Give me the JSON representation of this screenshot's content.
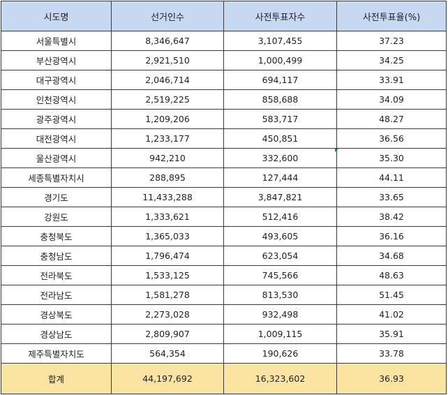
{
  "columns": [
    "시도명",
    "선거인수",
    "사전투표자수",
    "사전투표율(%)"
  ],
  "rows": [
    [
      "서울특별시",
      "8,346,647",
      "3,107,455",
      "37.23"
    ],
    [
      "부산광역시",
      "2,921,510",
      "1,000,499",
      "34.25"
    ],
    [
      "대구광역시",
      "2,046,714",
      "694,117",
      "33.91"
    ],
    [
      "인천광역시",
      "2,519,225",
      "858,688",
      "34.09"
    ],
    [
      "광주광역시",
      "1,209,206",
      "583,717",
      "48.27"
    ],
    [
      "대전광역시",
      "1,233,177",
      "450,851",
      "36.56"
    ],
    [
      "울산광역시",
      "942,210",
      "332,600",
      "35.30"
    ],
    [
      "세종특별자치시",
      "288,895",
      "127,444",
      "44.11"
    ],
    [
      "경기도",
      "11,433,288",
      "3,847,821",
      "33.65"
    ],
    [
      "강원도",
      "1,333,621",
      "512,416",
      "38.42"
    ],
    [
      "충청북도",
      "1,365,033",
      "493,605",
      "36.16"
    ],
    [
      "충청남도",
      "1,796,474",
      "623,054",
      "34.68"
    ],
    [
      "전라북도",
      "1,533,125",
      "745,566",
      "48.63"
    ],
    [
      "전라남도",
      "1,581,278",
      "813,530",
      "51.45"
    ],
    [
      "경상북도",
      "2,273,028",
      "932,498",
      "41.02"
    ],
    [
      "경상남도",
      "2,809,907",
      "1,009,115",
      "35.91"
    ],
    [
      "제주특별자치도",
      "564,354",
      "190,626",
      "33.78"
    ]
  ],
  "total": [
    "합계",
    "44,197,692",
    "16,323,602",
    "36.93"
  ],
  "colors": {
    "header_bg": "#c6d9f1",
    "total_bg": "#fbe3a2",
    "border": "#3a3a3a",
    "cell_marker": "#1e8a2e"
  }
}
